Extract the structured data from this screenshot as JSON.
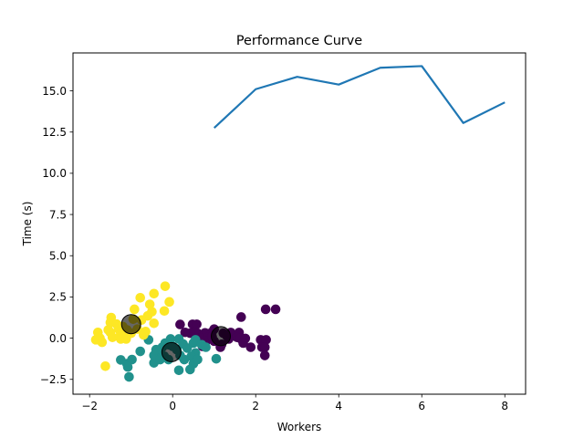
{
  "chart_data": {
    "type": "scatter",
    "title": "Performance Curve",
    "xlabel": "Workers",
    "ylabel": "Time (s)",
    "xlim": [
      -2.4,
      8.5
    ],
    "ylim": [
      -3.4,
      17.3
    ],
    "xticks": [
      -2,
      0,
      2,
      4,
      6,
      8
    ],
    "xtick_labels": [
      "−2",
      "0",
      "2",
      "4",
      "6",
      "8"
    ],
    "yticks": [
      -2.5,
      0.0,
      2.5,
      5.0,
      7.5,
      10.0,
      12.5,
      15.0
    ],
    "ytick_labels": [
      "−2.5",
      "0.0",
      "2.5",
      "5.0",
      "7.5",
      "10.0",
      "12.5",
      "15.0"
    ],
    "grid": false,
    "line_series": {
      "color": "#1f77b4",
      "x": [
        1,
        2,
        3,
        4,
        5,
        6,
        7,
        8
      ],
      "y": [
        12.75,
        15.1,
        15.85,
        15.38,
        16.4,
        16.5,
        13.05,
        14.3
      ]
    },
    "clusters": [
      {
        "color": "#440154",
        "center": [
          1.16,
          0.12
        ],
        "points": [
          [
            0.18,
            0.83
          ],
          [
            0.48,
            0.84
          ],
          [
            0.58,
            0.84
          ],
          [
            1.0,
            0.55
          ],
          [
            1.4,
            0.34
          ],
          [
            1.6,
            0.34
          ],
          [
            1.65,
            1.28
          ],
          [
            2.24,
            1.75
          ],
          [
            2.48,
            1.75
          ],
          [
            0.95,
            0.37
          ],
          [
            1.22,
            0.3
          ],
          [
            0.78,
            0.32
          ],
          [
            0.6,
            0.3
          ],
          [
            0.85,
            0.04
          ],
          [
            1.55,
            0.05
          ],
          [
            1.63,
            -0.02
          ],
          [
            1.75,
            -0.02
          ],
          [
            2.12,
            -0.1
          ],
          [
            2.25,
            -0.1
          ],
          [
            2.15,
            -0.55
          ],
          [
            2.22,
            -0.55
          ],
          [
            2.22,
            -1.05
          ],
          [
            1.88,
            -0.55
          ],
          [
            1.7,
            -0.3
          ],
          [
            1.35,
            -0.05
          ],
          [
            1.18,
            -0.37
          ],
          [
            1.0,
            -0.18
          ],
          [
            0.8,
            -0.2
          ],
          [
            0.72,
            -0.5
          ],
          [
            1.15,
            -0.55
          ],
          [
            0.55,
            0.35
          ],
          [
            0.42,
            0.3
          ],
          [
            0.3,
            0.35
          ],
          [
            0.95,
            0.1
          ],
          [
            1.3,
            0.15
          ],
          [
            0.65,
            0.0
          ]
        ]
      },
      {
        "color": "#21918c",
        "center": [
          -0.03,
          -0.85
        ],
        "points": [
          [
            -0.58,
            -0.1
          ],
          [
            -1.25,
            -1.32
          ],
          [
            -1.1,
            -1.55
          ],
          [
            -0.98,
            -1.3
          ],
          [
            -1.08,
            -1.75
          ],
          [
            -1.05,
            -2.35
          ],
          [
            -0.78,
            -0.8
          ],
          [
            -0.45,
            -1.5
          ],
          [
            -0.45,
            -1.05
          ],
          [
            -0.3,
            -0.95
          ],
          [
            -0.3,
            -1.3
          ],
          [
            -0.18,
            -0.3
          ],
          [
            -0.05,
            -0.05
          ],
          [
            0.15,
            -0.05
          ],
          [
            0.25,
            -0.35
          ],
          [
            0.35,
            -0.6
          ],
          [
            0.5,
            -0.3
          ],
          [
            0.55,
            -0.9
          ],
          [
            0.45,
            -1.1
          ],
          [
            0.5,
            -1.55
          ],
          [
            0.42,
            -1.9
          ],
          [
            0.15,
            -1.95
          ],
          [
            0.28,
            -1.3
          ],
          [
            0.18,
            -1.05
          ],
          [
            0.1,
            -0.7
          ],
          [
            -0.1,
            -0.4
          ],
          [
            -0.25,
            -0.55
          ],
          [
            0.55,
            -0.1
          ],
          [
            0.7,
            -0.4
          ],
          [
            0.8,
            -0.55
          ],
          [
            1.05,
            -1.25
          ],
          [
            -0.2,
            -1.1
          ],
          [
            0.0,
            -0.5
          ],
          [
            0.6,
            -1.3
          ],
          [
            -0.4,
            -0.7
          ],
          [
            -0.1,
            -1.3
          ]
        ]
      },
      {
        "color": "#fde725",
        "center": [
          -1.0,
          0.85
        ],
        "points": [
          [
            -1.8,
            0.35
          ],
          [
            -1.75,
            0.0
          ],
          [
            -1.85,
            -0.1
          ],
          [
            -1.7,
            -0.25
          ],
          [
            -1.62,
            -1.7
          ],
          [
            -1.5,
            0.35
          ],
          [
            -1.5,
            0.95
          ],
          [
            -1.48,
            1.25
          ],
          [
            -1.3,
            0.55
          ],
          [
            -1.25,
            0.25
          ],
          [
            -1.25,
            -0.05
          ],
          [
            -1.12,
            -0.05
          ],
          [
            -0.95,
            1.15
          ],
          [
            -0.92,
            1.75
          ],
          [
            -0.78,
            2.45
          ],
          [
            -0.65,
            0.4
          ],
          [
            -0.6,
            1.35
          ],
          [
            -0.55,
            2.05
          ],
          [
            -0.45,
            2.7
          ],
          [
            -0.45,
            0.9
          ],
          [
            -0.2,
            1.65
          ],
          [
            -0.18,
            3.15
          ],
          [
            -0.08,
            2.2
          ],
          [
            -1.55,
            0.5
          ],
          [
            -1.45,
            0.05
          ],
          [
            -1.35,
            0.85
          ],
          [
            -1.2,
            0.7
          ],
          [
            -1.1,
            0.5
          ],
          [
            -1.0,
            0.3
          ],
          [
            -0.85,
            0.55
          ],
          [
            -0.75,
            1.1
          ],
          [
            -0.7,
            0.2
          ],
          [
            -0.5,
            1.6
          ]
        ]
      }
    ]
  }
}
